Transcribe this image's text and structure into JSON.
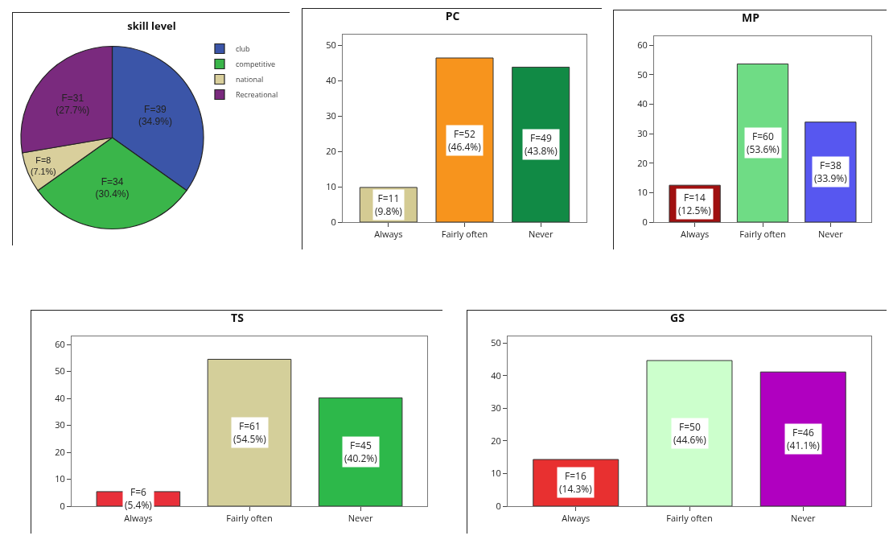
{
  "chart_data": [
    {
      "type": "pie",
      "title": "skill level",
      "categories": [
        "club",
        "competitive",
        "national",
        "Recreational"
      ],
      "values": [
        39,
        34,
        8,
        31
      ],
      "colors": [
        "#3b55a8",
        "#3ab54a",
        "#d9cf9c",
        "#7a2a7e"
      ],
      "value_labels": [
        "F=39\n(34.9%)",
        "F=34\n(30.4%)",
        "F=8\n(7.1%)",
        "F=31\n(27.7%)"
      ],
      "legend": "top right"
    },
    {
      "type": "bar",
      "title": "PC",
      "categories": [
        "Always",
        "Fairly often",
        "Never"
      ],
      "values": [
        9.8,
        46.4,
        43.8
      ],
      "colors": [
        "#d4cb93",
        "#f7941d",
        "#118a45"
      ],
      "value_labels": [
        "F=11\n(9.8%)",
        "F=52\n(46.4%)",
        "F=49\n(43.8%)"
      ],
      "ylim": [
        0,
        53
      ],
      "yticks": [
        0,
        10,
        20,
        30,
        40,
        50
      ],
      "grid": false
    },
    {
      "type": "bar",
      "title": "MP",
      "categories": [
        "Always",
        "Fairly often",
        "Never"
      ],
      "values": [
        12.5,
        53.6,
        33.9
      ],
      "colors": [
        "#a01010",
        "#6fdc85",
        "#5757f0"
      ],
      "value_labels": [
        "F=14\n(12.5%)",
        "F=60\n(53.6%)",
        "F=38\n(33.9%)"
      ],
      "ylim": [
        0,
        63
      ],
      "yticks": [
        0,
        10,
        20,
        30,
        40,
        50,
        60
      ],
      "grid": false
    },
    {
      "type": "bar",
      "title": "TS",
      "categories": [
        "Always",
        "Fairly often",
        "Never"
      ],
      "values": [
        5.4,
        54.5,
        40.2
      ],
      "colors": [
        "#e8303a",
        "#d4cf9a",
        "#2db84a"
      ],
      "value_labels": [
        "F=6\n(5.4%)",
        "F=61\n(54.5%)",
        "F=45\n(40.2%)"
      ],
      "ylim": [
        0,
        63
      ],
      "yticks": [
        0,
        10,
        20,
        30,
        40,
        50,
        60
      ],
      "grid": false
    },
    {
      "type": "bar",
      "title": "GS",
      "categories": [
        "Always",
        "Fairly often",
        "Never"
      ],
      "values": [
        14.3,
        44.6,
        41.1
      ],
      "colors": [
        "#e83030",
        "#ccffcc",
        "#b000c0"
      ],
      "value_labels": [
        "F=16\n(14.3%)",
        "F=50\n(44.6%)",
        "F=46\n(41.1%)"
      ],
      "ylim": [
        0,
        52
      ],
      "yticks": [
        0,
        10,
        20,
        30,
        40,
        50
      ],
      "grid": false
    }
  ]
}
